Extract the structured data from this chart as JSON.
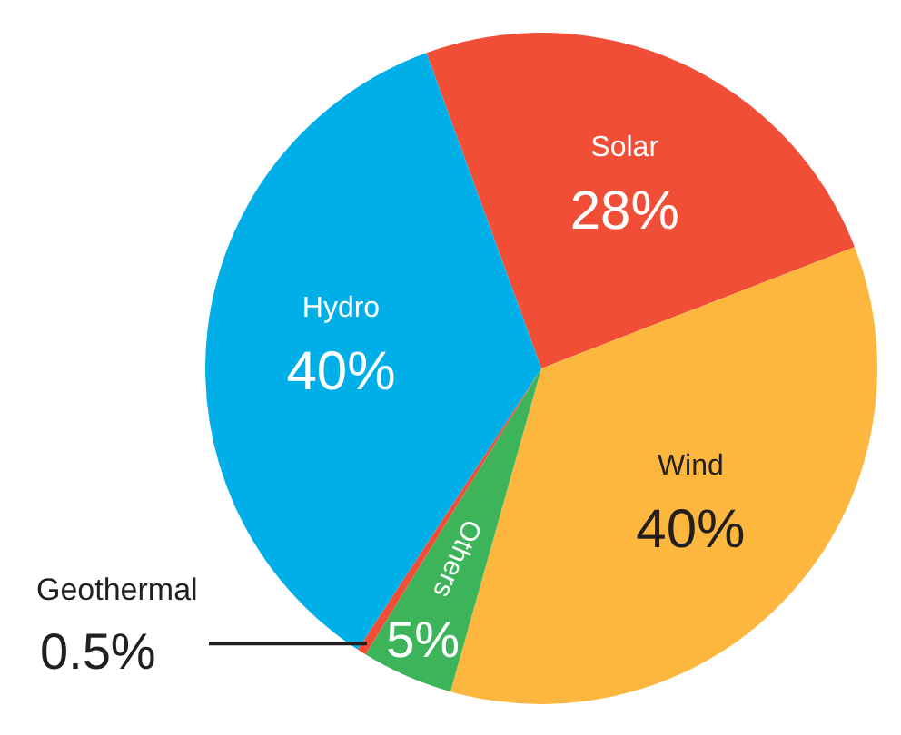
{
  "chart_data": {
    "type": "pie",
    "categories": [
      "Solar",
      "Wind",
      "Others",
      "Geothermal",
      "Hydro"
    ],
    "values": [
      28,
      40,
      5,
      0.5,
      40
    ],
    "colors": [
      "#f04e37",
      "#fdb73e",
      "#3db45a",
      "#f04e37",
      "#00aee8"
    ],
    "value_labels": [
      "28%",
      "40%",
      "5%",
      "0.5%",
      "40%"
    ]
  }
}
